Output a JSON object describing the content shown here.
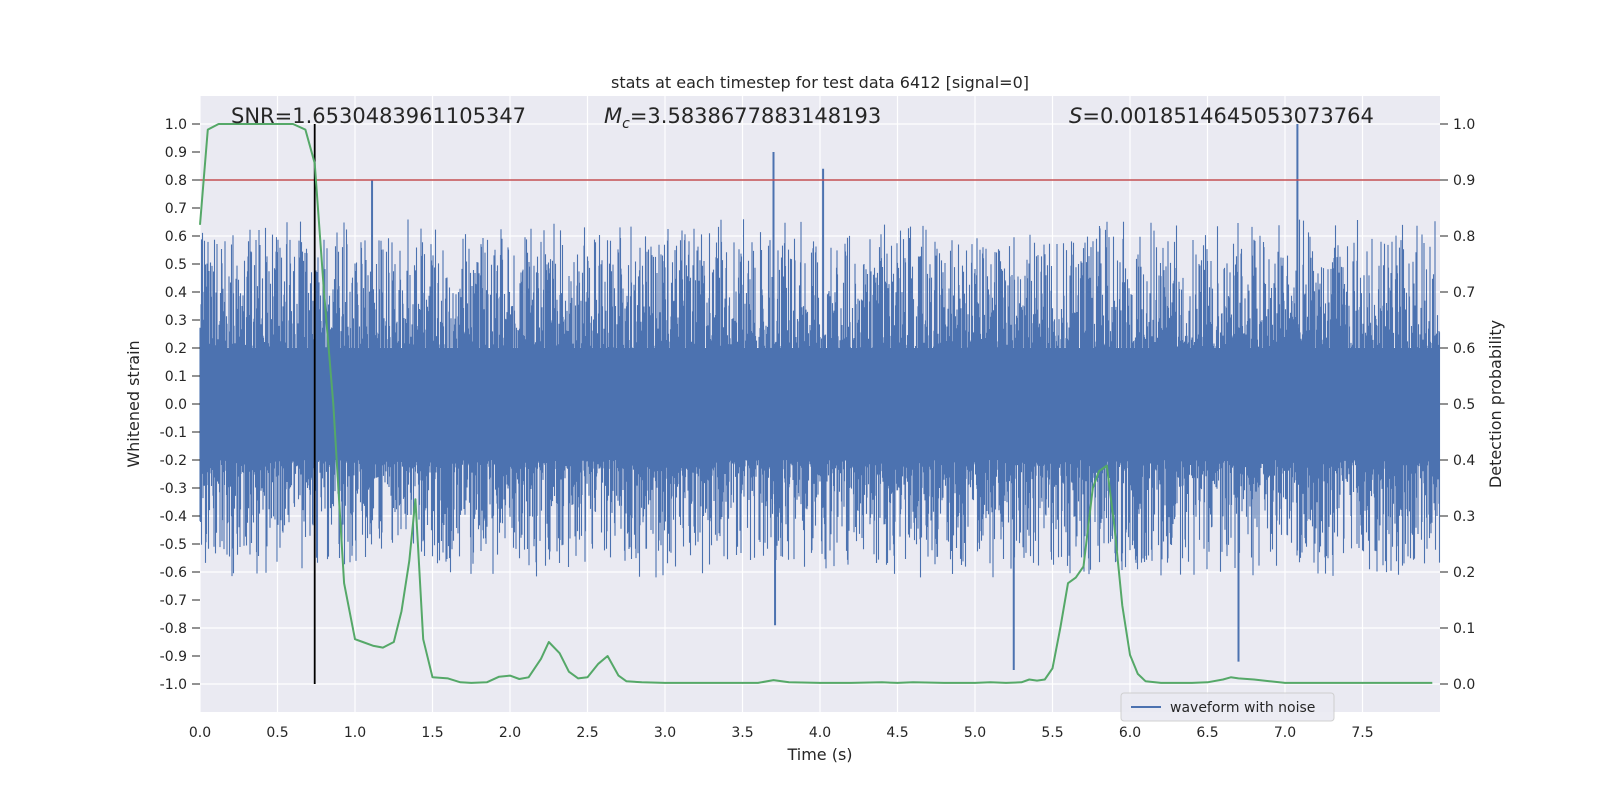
{
  "chart_data": {
    "type": "line",
    "title": "stats at each timestep for test data 6412 [signal=0]",
    "xlabel": "Time (s)",
    "ylabel_left": "Whitened strain",
    "ylabel_right": "Detection probability",
    "xlim": [
      0,
      8.0
    ],
    "ylim_left": [
      -1.1,
      1.1
    ],
    "ylim_right": [
      -0.05,
      1.05
    ],
    "x_ticks": [
      "0.0",
      "0.5",
      "1.0",
      "1.5",
      "2.0",
      "2.5",
      "3.0",
      "3.5",
      "4.0",
      "4.5",
      "5.0",
      "5.5",
      "6.0",
      "6.5",
      "7.0",
      "7.5"
    ],
    "y_left_ticks": [
      "1.0",
      "0.9",
      "0.8",
      "0.7",
      "0.6",
      "0.5",
      "0.4",
      "0.3",
      "0.2",
      "0.1",
      "0.0",
      "-0.1",
      "-0.2",
      "-0.3",
      "-0.4",
      "-0.5",
      "-0.6",
      "-0.7",
      "-0.8",
      "-0.9",
      "-1.0"
    ],
    "y_right_ticks": [
      "1.0",
      "0.9",
      "0.8",
      "0.7",
      "0.6",
      "0.5",
      "0.4",
      "0.3",
      "0.2",
      "0.1",
      "0.0"
    ],
    "grid": true,
    "legend_placement": "lower-right",
    "annotations": {
      "snr": "SNR=1.6530483961105347",
      "mc_symbol": "M",
      "mc_sub": "c",
      "mc_value": "=3.5838677883148193",
      "s_symbol": "S",
      "s_value": "=0.0018514645053073764"
    },
    "threshold": {
      "value": 0.9,
      "axis": "right",
      "color": "#c44e52"
    },
    "vertical_marker": {
      "x": 0.74,
      "color": "#000000"
    },
    "series": [
      {
        "name": "waveform with noise",
        "axis": "left",
        "color": "#4c72b0",
        "summary": "dense noise waveform spanning roughly -0.75 to 1.0 across 0-8 s",
        "spikes": [
          {
            "x": 1.11,
            "y": 0.8
          },
          {
            "x": 3.7,
            "y": 0.9
          },
          {
            "x": 3.71,
            "y": -0.79
          },
          {
            "x": 4.02,
            "y": 0.84
          },
          {
            "x": 5.25,
            "y": -0.95
          },
          {
            "x": 6.7,
            "y": -0.92
          },
          {
            "x": 7.08,
            "y": 1.0
          }
        ]
      },
      {
        "name": "",
        "axis": "right",
        "color": "#55a868",
        "x": [
          0.0,
          0.05,
          0.12,
          0.2,
          0.3,
          0.4,
          0.5,
          0.6,
          0.68,
          0.74,
          0.8,
          0.86,
          0.93,
          1.0,
          1.05,
          1.12,
          1.18,
          1.25,
          1.3,
          1.35,
          1.39,
          1.44,
          1.5,
          1.6,
          1.68,
          1.75,
          1.85,
          1.93,
          2.0,
          2.06,
          2.12,
          2.2,
          2.25,
          2.32,
          2.38,
          2.44,
          2.5,
          2.57,
          2.63,
          2.7,
          2.75,
          2.85,
          3.0,
          3.2,
          3.4,
          3.6,
          3.7,
          3.8,
          4.0,
          4.2,
          4.4,
          4.5,
          4.6,
          4.8,
          5.0,
          5.1,
          5.2,
          5.3,
          5.35,
          5.4,
          5.45,
          5.5,
          5.55,
          5.6,
          5.65,
          5.7,
          5.76,
          5.8,
          5.85,
          5.9,
          5.95,
          6.0,
          6.05,
          6.1,
          6.2,
          6.4,
          6.5,
          6.6,
          6.65,
          6.7,
          6.8,
          6.9,
          7.0,
          7.2,
          7.5,
          7.8,
          7.95
        ],
        "y": [
          0.82,
          0.99,
          1.0,
          1.0,
          1.0,
          1.0,
          1.0,
          1.0,
          0.99,
          0.93,
          0.7,
          0.5,
          0.18,
          0.08,
          0.075,
          0.068,
          0.065,
          0.075,
          0.13,
          0.22,
          0.33,
          0.08,
          0.012,
          0.01,
          0.003,
          0.002,
          0.003,
          0.013,
          0.015,
          0.009,
          0.012,
          0.045,
          0.075,
          0.055,
          0.022,
          0.01,
          0.012,
          0.036,
          0.05,
          0.015,
          0.005,
          0.003,
          0.002,
          0.002,
          0.002,
          0.002,
          0.007,
          0.003,
          0.002,
          0.002,
          0.003,
          0.002,
          0.003,
          0.002,
          0.002,
          0.003,
          0.002,
          0.003,
          0.008,
          0.006,
          0.008,
          0.028,
          0.1,
          0.18,
          0.19,
          0.21,
          0.35,
          0.38,
          0.39,
          0.28,
          0.14,
          0.052,
          0.018,
          0.005,
          0.002,
          0.002,
          0.003,
          0.008,
          0.012,
          0.01,
          0.008,
          0.005,
          0.002,
          0.002,
          0.002,
          0.002,
          0.002
        ]
      }
    ]
  }
}
